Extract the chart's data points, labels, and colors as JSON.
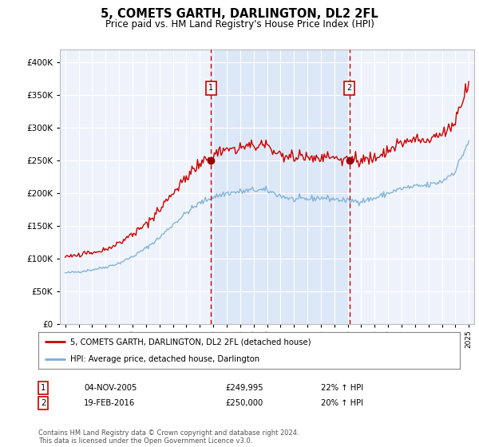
{
  "title": "5, COMETS GARTH, DARLINGTON, DL2 2FL",
  "subtitle": "Price paid vs. HM Land Registry's House Price Index (HPI)",
  "legend_line1": "5, COMETS GARTH, DARLINGTON, DL2 2FL (detached house)",
  "legend_line2": "HPI: Average price, detached house, Darlington",
  "footer": "Contains HM Land Registry data © Crown copyright and database right 2024.\nThis data is licensed under the Open Government Licence v3.0.",
  "sale1_date": "04-NOV-2005",
  "sale1_price": 249995,
  "sale1_hpi": "22% ↑ HPI",
  "sale2_date": "19-FEB-2016",
  "sale2_price": 250000,
  "sale2_hpi": "20% ↑ HPI",
  "sale1_x": 2005.84,
  "sale2_x": 2016.12,
  "background_color": "#ffffff",
  "plot_bg_color": "#eef3fb",
  "shade_color": "#dce8f7",
  "red_line_color": "#cc0000",
  "blue_line_color": "#7aadd4",
  "vline_color": "#cc0000",
  "marker_color": "#990000",
  "grid_color": "#ffffff",
  "spine_color": "#bbbbbb"
}
